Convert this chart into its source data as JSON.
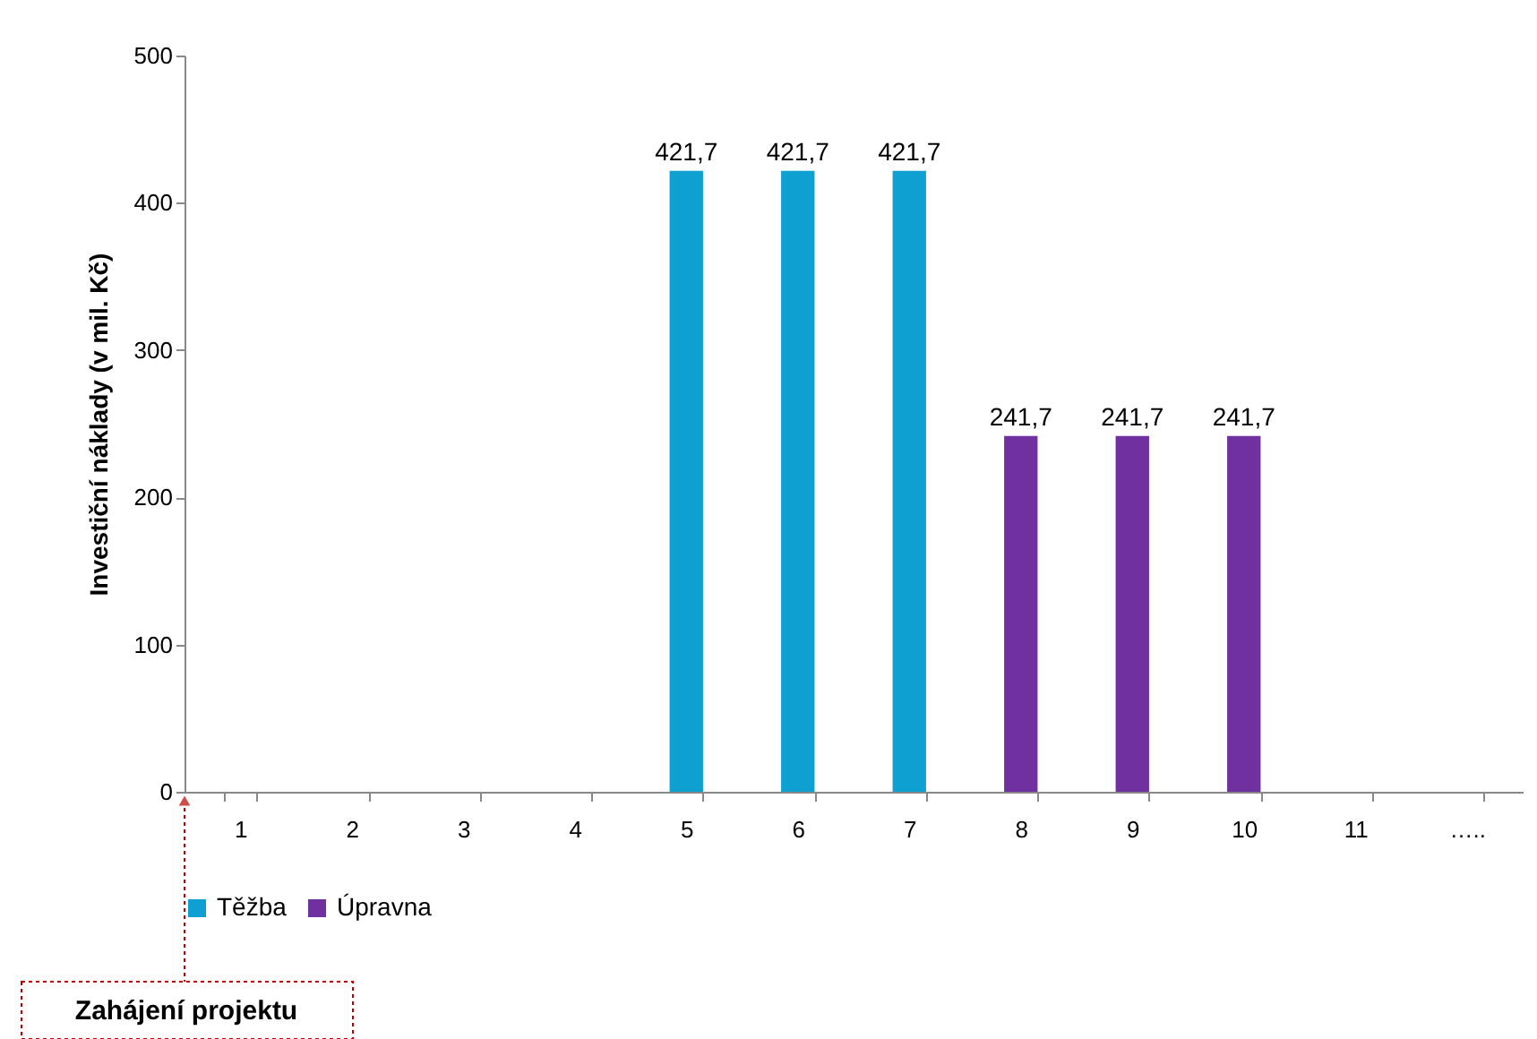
{
  "chart_data": {
    "type": "bar",
    "ylabel": "Investiční náklady (v mil. Kč)",
    "categories": [
      "1",
      "2",
      "3",
      "4",
      "5",
      "6",
      "7",
      "8",
      "9",
      "10",
      "11",
      "….."
    ],
    "series": [
      {
        "name": "Těžba",
        "color": "#0fa0d2",
        "values": [
          null,
          null,
          null,
          null,
          421.7,
          421.7,
          421.7,
          null,
          null,
          null,
          null,
          null
        ],
        "value_labels": [
          null,
          null,
          null,
          null,
          "421,7",
          "421,7",
          "421,7",
          null,
          null,
          null,
          null,
          null
        ]
      },
      {
        "name": "Úpravna",
        "color": "#7030a0",
        "values": [
          null,
          null,
          null,
          null,
          null,
          null,
          null,
          241.7,
          241.7,
          241.7,
          null,
          null
        ],
        "value_labels": [
          null,
          null,
          null,
          null,
          null,
          null,
          null,
          "241,7",
          "241,7",
          "241,7",
          null,
          null
        ]
      }
    ],
    "ylim": [
      0,
      500
    ],
    "yticks": [
      0,
      100,
      200,
      300,
      400,
      500
    ],
    "grid": false,
    "legend": "bottom",
    "annotations": [
      "Zahájení projektu"
    ]
  }
}
